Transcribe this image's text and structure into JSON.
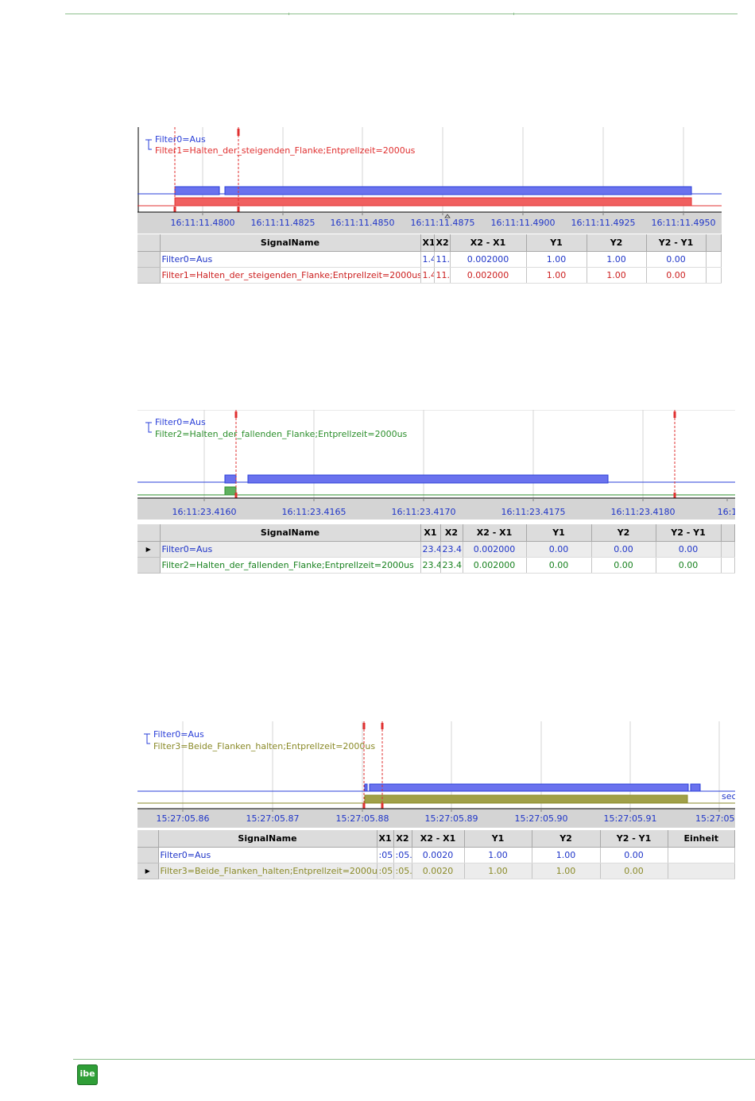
{
  "logo": {
    "text": "ibe"
  },
  "colors": {
    "blue": "#2a3fd8",
    "red": "#e03030",
    "green": "#2c8f2c",
    "olive": "#8a8a28"
  },
  "panels": [
    {
      "legend": [
        {
          "label": "Filter0=Aus",
          "color": "#2a3fd8"
        },
        {
          "label": "Filter1=Halten_der_steigenden_Flanke;Entprellzeit=2000us",
          "color": "#e03030"
        }
      ],
      "ticks": [
        "16:11:11.4800",
        "16:11:11.4825",
        "16:11:11.4850",
        "16:11:11.4875",
        "16:11:11.4900",
        "16:11:11.4925",
        "16:11:11.4950"
      ],
      "columns": [
        "SignalName",
        "X1",
        "X2",
        "X2 - X1",
        "Y1",
        "Y2",
        "Y2 - Y1"
      ],
      "rows": [
        {
          "cells": [
            "Filter0=Aus",
            "1.4",
            "11.4",
            "0.002000",
            "1.00",
            "1.00",
            "0.00"
          ]
        },
        {
          "cells": [
            "Filter1=Halten_der_steigenden_Flanke;Entprellzeit=2000us",
            "1.4",
            "11.4",
            "0.002000",
            "1.00",
            "1.00",
            "0.00"
          ]
        }
      ]
    },
    {
      "legend": [
        {
          "label": "Filter0=Aus",
          "color": "#2a3fd8"
        },
        {
          "label": "Filter2=Halten_der_fallenden_Flanke;Entprellzeit=2000us",
          "color": "#2c8f2c"
        }
      ],
      "ticks": [
        "16:11:23.4160",
        "16:11:23.4165",
        "16:11:23.4170",
        "16:11:23.4175",
        "16:11:23.4180",
        "16:1"
      ],
      "columns": [
        "SignalName",
        "X1",
        "X2",
        "X2 - X1",
        "Y1",
        "Y2",
        "Y2 - Y1"
      ],
      "rows": [
        {
          "cells": [
            "Filter0=Aus",
            "23.4",
            "23.41",
            "0.002000",
            "0.00",
            "0.00",
            "0.00"
          ]
        },
        {
          "cells": [
            "Filter2=Halten_der_fallenden_Flanke;Entprellzeit=2000us",
            "23.4",
            "23.41",
            "0.002000",
            "0.00",
            "0.00",
            "0.00"
          ]
        }
      ]
    },
    {
      "legend": [
        {
          "label": "Filter0=Aus",
          "color": "#2a3fd8"
        },
        {
          "label": "Filter3=Beide_Flanken_halten;Entprellzeit=2000us",
          "color": "#8a8a28"
        }
      ],
      "ticks": [
        "15:27:05.86",
        "15:27:05.87",
        "15:27:05.88",
        "15:27:05.89",
        "15:27:05.90",
        "15:27:05.91",
        "15:27:05.9"
      ],
      "unit": "sec",
      "columns": [
        "SignalName",
        "X1",
        "X2",
        "X2 - X1",
        "Y1",
        "Y2",
        "Y2 - Y1",
        "Einheit"
      ],
      "rows": [
        {
          "cells": [
            "Filter0=Aus",
            ":05.",
            ":05.",
            "0.0020",
            "1.00",
            "1.00",
            "0.00",
            ""
          ]
        },
        {
          "cells": [
            "Filter3=Beide_Flanken_halten;Entprellzeit=2000us",
            ":05.",
            ":05.",
            "0.0020",
            "1.00",
            "1.00",
            "0.00",
            ""
          ]
        }
      ]
    }
  ]
}
